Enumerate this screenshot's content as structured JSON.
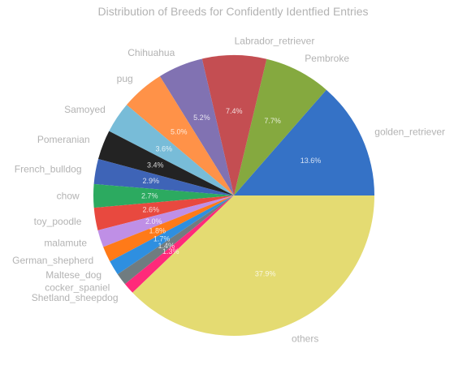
{
  "chart_data": {
    "type": "pie",
    "title": "Distribution of Breeds for Confidently Identfied Entries",
    "slices": [
      {
        "label": "golden_retriever",
        "value": 13.6,
        "pct_label": "13.6%",
        "color": "#3572c6"
      },
      {
        "label": "Pembroke",
        "value": 7.7,
        "pct_label": "7.7%",
        "color": "#85a93f"
      },
      {
        "label": "Labrador_retriever",
        "value": 7.4,
        "pct_label": "7.4%",
        "color": "#c44e52"
      },
      {
        "label": "Chihuahua",
        "value": 5.2,
        "pct_label": "5.2%",
        "color": "#8172b2"
      },
      {
        "label": "pug",
        "value": 5.0,
        "pct_label": "5.0%",
        "color": "#ff9248"
      },
      {
        "label": "Samoyed",
        "value": 3.6,
        "pct_label": "3.6%",
        "color": "#78bcd8"
      },
      {
        "label": "Pomeranian",
        "value": 3.4,
        "pct_label": "3.4%",
        "color": "#232323"
      },
      {
        "label": "French_bulldog",
        "value": 2.9,
        "pct_label": "2.9%",
        "color": "#3e64b7"
      },
      {
        "label": "chow",
        "value": 2.7,
        "pct_label": "2.7%",
        "color": "#2caa60"
      },
      {
        "label": "toy_poodle",
        "value": 2.6,
        "pct_label": "2.6%",
        "color": "#e8493f"
      },
      {
        "label": "malamute",
        "value": 2.0,
        "pct_label": "2.0%",
        "color": "#bf8fe6"
      },
      {
        "label": "German_shepherd",
        "value": 1.8,
        "pct_label": "1.8%",
        "color": "#ff7a18"
      },
      {
        "label": "Maltese_dog",
        "value": 1.7,
        "pct_label": "1.7%",
        "color": "#2e8fe0"
      },
      {
        "label": "cocker_spaniel",
        "value": 1.4,
        "pct_label": "1.4%",
        "color": "#707c80"
      },
      {
        "label": "Shetland_sheepdog",
        "value": 1.3,
        "pct_label": "1.3%",
        "color": "#ff2a7a"
      },
      {
        "label": "others",
        "value": 37.9,
        "pct_label": "37.9%",
        "color": "#e4db72"
      }
    ],
    "start_angle": "3 o'clock",
    "direction": "counterclockwise",
    "legend": "none"
  }
}
